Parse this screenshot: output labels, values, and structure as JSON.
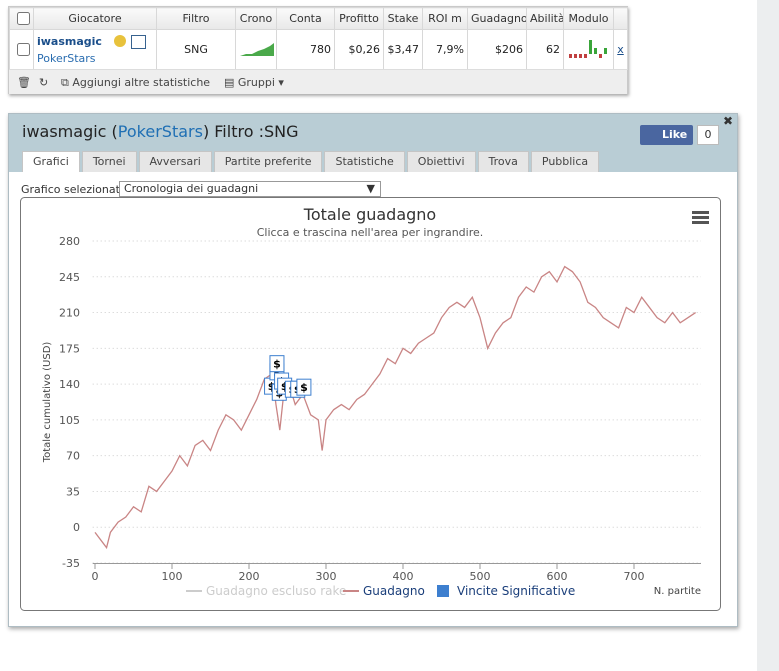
{
  "table": {
    "header": [
      "Giocatore",
      "Filtro",
      "Crono",
      "Conta",
      "Profitto",
      "Stake",
      "ROI m",
      "Guadagno",
      "Abilità",
      "Modulo"
    ],
    "row": {
      "player": "iwasmagic",
      "site": "PokerStars",
      "filter": "SNG",
      "count": "780",
      "profit": "$0,26",
      "stake": "$3,47",
      "roi": "7,9%",
      "earnings": "$206",
      "ability": "62",
      "remove": "x"
    },
    "footer": {
      "add": "Aggiungi altre statistiche",
      "groups": "Gruppi"
    }
  },
  "panel": {
    "title_player": "iwasmagic (",
    "title_site": "PokerStars",
    "title_filter": ") Filtro :SNG",
    "like": {
      "label": "Like",
      "count": "0"
    },
    "tabs": [
      "Grafici",
      "Tornei",
      "Avversari",
      "Partite preferite",
      "Statistiche",
      "Obiettivi",
      "Trova",
      "Pubblica"
    ],
    "selector_label": "Grafico selezionato",
    "selector_value": "Cronologia dei guadagni"
  },
  "chart_data": {
    "type": "line",
    "title": "Totale guadagno",
    "subtitle": "Clicca e trascina nell'area per ingrandire.",
    "y_label": "Totale cumulativo (USD)",
    "x_label": "N. partite",
    "xlim": [
      -3,
      787
    ],
    "xticks": [
      0,
      100,
      200,
      300,
      400,
      500,
      600,
      700
    ],
    "ylim": [
      -35,
      280
    ],
    "yticks": [
      -35,
      0,
      35,
      70,
      105,
      140,
      175,
      210,
      245,
      280
    ],
    "grid": true,
    "series": [
      {
        "name": "Guadagno escluso rake",
        "color": "#cccccc",
        "visible": false
      },
      {
        "name": "Guadagno",
        "color": "#c98585",
        "x": [
          0,
          10,
          15,
          20,
          30,
          40,
          50,
          60,
          70,
          80,
          90,
          100,
          110,
          120,
          130,
          140,
          150,
          160,
          170,
          180,
          190,
          200,
          210,
          220,
          230,
          235,
          240,
          245,
          250,
          260,
          270,
          280,
          290,
          295,
          300,
          310,
          320,
          330,
          340,
          350,
          360,
          370,
          380,
          390,
          400,
          410,
          420,
          430,
          440,
          450,
          460,
          470,
          480,
          490,
          500,
          510,
          520,
          530,
          540,
          550,
          560,
          570,
          580,
          590,
          600,
          610,
          620,
          630,
          640,
          650,
          660,
          670,
          680,
          690,
          700,
          710,
          720,
          730,
          740,
          750,
          760,
          770,
          780
        ],
        "values": [
          -5,
          -15,
          -20,
          -5,
          5,
          10,
          20,
          15,
          40,
          35,
          45,
          55,
          70,
          60,
          80,
          85,
          75,
          95,
          110,
          105,
          95,
          110,
          125,
          145,
          150,
          120,
          95,
          130,
          145,
          120,
          130,
          110,
          105,
          75,
          105,
          115,
          120,
          115,
          125,
          130,
          140,
          150,
          165,
          160,
          175,
          170,
          180,
          185,
          190,
          205,
          215,
          220,
          215,
          225,
          205,
          175,
          190,
          200,
          205,
          225,
          235,
          230,
          245,
          250,
          240,
          255,
          250,
          240,
          220,
          215,
          205,
          200,
          195,
          215,
          210,
          225,
          215,
          205,
          200,
          210,
          200,
          205,
          210
        ]
      },
      {
        "name": "Vincite Significative",
        "color": "#3d7fcf",
        "type": "flags",
        "flag_label": "$",
        "x": [
          228,
          235,
          238,
          241,
          245,
          255,
          262,
          270,
          235
        ],
        "values": [
          138,
          152,
          132,
          143,
          138,
          135,
          135,
          137,
          160
        ]
      }
    ]
  }
}
